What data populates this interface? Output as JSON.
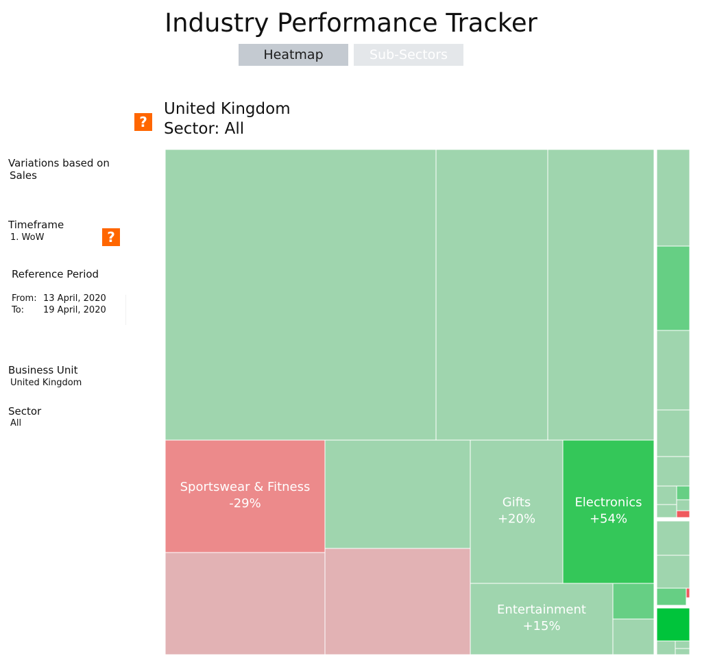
{
  "header": {
    "title": "Industry Performance Tracker",
    "tabs": [
      {
        "label": "Heatmap",
        "active": true
      },
      {
        "label": "Sub-Sectors",
        "active": false
      }
    ]
  },
  "help_glyph": "?",
  "chart_heading": {
    "region": "United Kingdom",
    "sector": "Sector: All"
  },
  "sidebar": {
    "variations_label": "Variations based on",
    "variations_value": "Sales",
    "timeframe_label": "Timeframe",
    "timeframe_value": "1. WoW",
    "reference_label": "Reference Period",
    "from_label": "From:",
    "from_value": "13 April, 2020",
    "to_label": "To:",
    "to_value": "19 April, 2020",
    "business_unit_label": "Business Unit",
    "business_unit_value": "United Kingdom",
    "sector_label": "Sector",
    "sector_value": "All"
  },
  "colors": {
    "neutral": "#9fd5ae",
    "mid_green": "#66cf84",
    "strong_green": "#34c759",
    "brightest_green": "#00c43b",
    "red": "#ec8a8b",
    "pale_red": "#e2b2b4",
    "bright_red": "#ef5a5e",
    "label": "#ffffff"
  },
  "chart_data": {
    "type": "treemap",
    "tiles": [
      {
        "name": "",
        "value": ""
      },
      {
        "name": "",
        "value": ""
      },
      {
        "name": "",
        "value": ""
      },
      {
        "name": "Sportswear & Fitness",
        "value": "-29%"
      },
      {
        "name": "",
        "value": ""
      },
      {
        "name": "",
        "value": ""
      },
      {
        "name": "",
        "value": ""
      },
      {
        "name": "Gifts",
        "value": "+20%"
      },
      {
        "name": "Electronics",
        "value": "+54%"
      },
      {
        "name": "Entertainment",
        "value": "+15%"
      },
      {
        "name": "",
        "value": ""
      },
      {
        "name": "",
        "value": ""
      },
      {
        "name": "",
        "value": ""
      },
      {
        "name": "",
        "value": ""
      },
      {
        "name": "",
        "value": ""
      },
      {
        "name": "",
        "value": ""
      },
      {
        "name": "",
        "value": ""
      },
      {
        "name": "",
        "value": ""
      },
      {
        "name": "",
        "value": ""
      },
      {
        "name": "",
        "value": ""
      },
      {
        "name": "",
        "value": ""
      },
      {
        "name": "",
        "value": ""
      },
      {
        "name": "",
        "value": ""
      },
      {
        "name": "",
        "value": ""
      },
      {
        "name": "",
        "value": ""
      },
      {
        "name": "",
        "value": ""
      },
      {
        "name": "",
        "value": ""
      },
      {
        "name": "",
        "value": ""
      },
      {
        "name": "",
        "value": ""
      },
      {
        "name": "",
        "value": ""
      }
    ]
  }
}
